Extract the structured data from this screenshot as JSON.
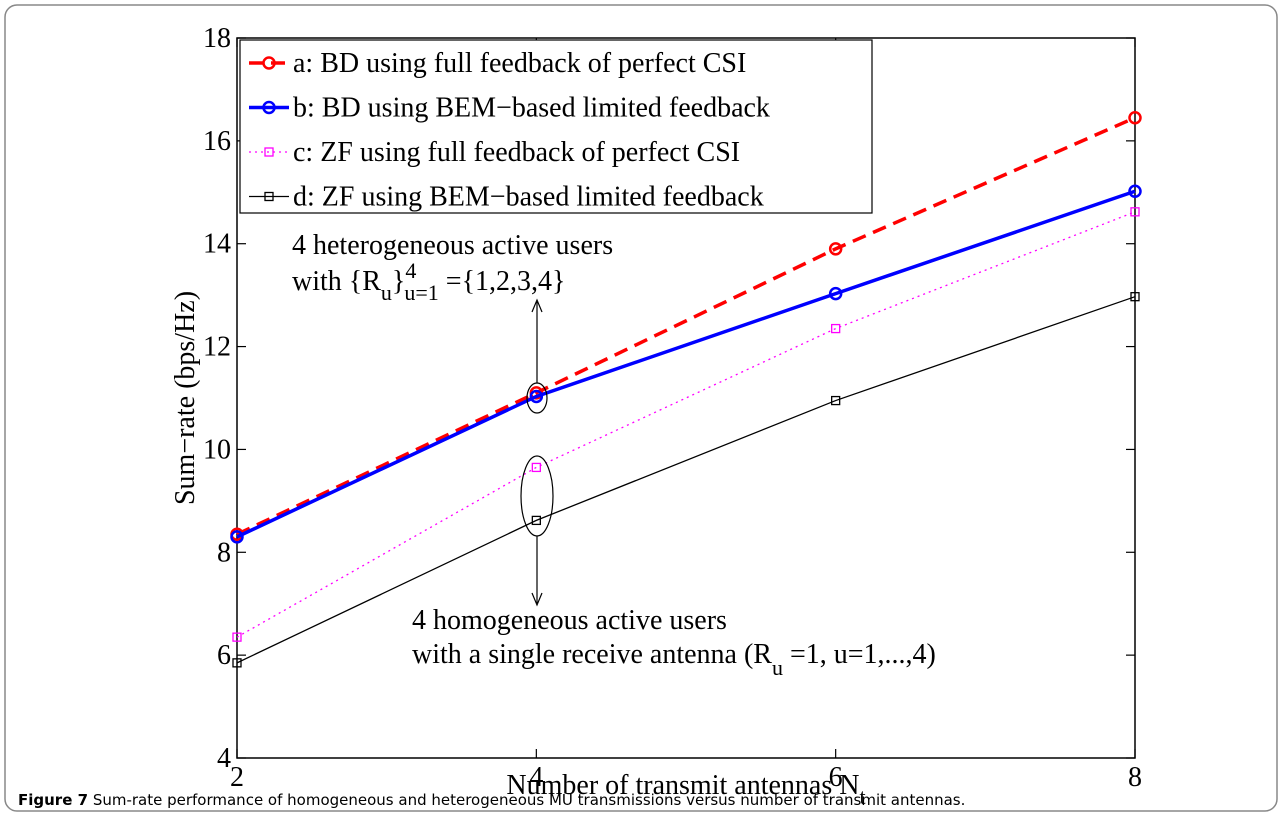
{
  "chart_data": {
    "type": "line",
    "x": [
      2,
      4,
      6,
      8
    ],
    "xlim": [
      2,
      8
    ],
    "xticks": [
      2,
      4,
      6,
      8
    ],
    "ylim": [
      4,
      18
    ],
    "yticks": [
      4,
      6,
      8,
      10,
      12,
      14,
      16,
      18
    ],
    "xlabel": [
      "Number of transmit antennas N",
      "t"
    ],
    "ylabel": "Sum−rate (bps/Hz)",
    "legend": "upper left",
    "series": [
      {
        "name": "a: BD using full feedback of perfect CSI",
        "color": "#ff0000",
        "line_style": "dashed",
        "marker": "circle",
        "values": [
          8.35,
          11.1,
          13.9,
          16.45
        ]
      },
      {
        "name": "b: BD using BEM−based limited feedback",
        "color": "#0000ff",
        "line_style": "solid",
        "marker": "circle",
        "values": [
          8.3,
          11.03,
          13.03,
          15.02
        ]
      },
      {
        "name": "c: ZF using full feedback of perfect CSI",
        "color": "#ff00ff",
        "line_style": "dotted",
        "marker": "square",
        "values": [
          6.35,
          9.65,
          12.35,
          14.62
        ]
      },
      {
        "name": "d: ZF using BEM−based limited feedback",
        "color": "#000000",
        "line_style": "solid",
        "marker": "square",
        "values": [
          5.85,
          8.62,
          10.95,
          12.97
        ]
      }
    ],
    "annotations": [
      {
        "line1": "4 heterogeneous active users",
        "line2": [
          "with {R",
          "u",
          "}",
          "4",
          "u=1",
          " ={1,2,3,4}"
        ]
      },
      {
        "line1": "4 homogeneous active users",
        "line2": [
          "with a single receive antenna (R",
          "u",
          " =1, u=1,...,4)"
        ]
      }
    ],
    "caption": {
      "label": "Figure 7",
      "text": " Sum-rate performance of homogeneous and heterogeneous MU transmissions versus number of transmit antennas."
    }
  }
}
